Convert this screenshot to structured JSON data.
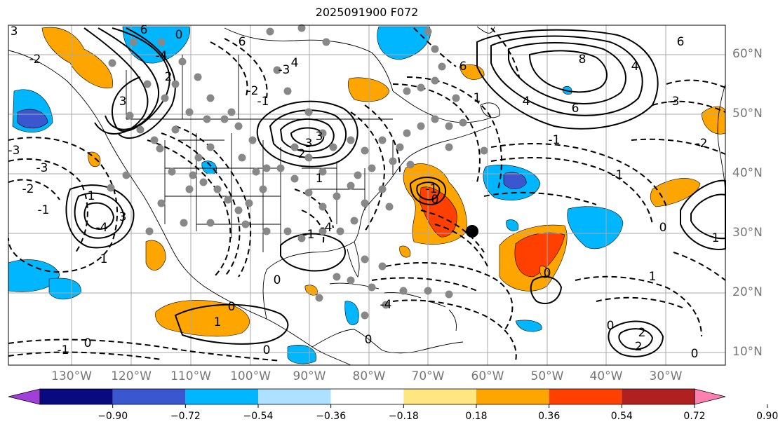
{
  "title": "2025091900 F072",
  "latitude_labels": [
    "60°N",
    "50°N",
    "40°N",
    "30°N",
    "20°N",
    "10°N"
  ],
  "longitude_labels": [
    "130°W",
    "120°W",
    "110°W",
    "100°W",
    "90°W",
    "80°W",
    "70°W",
    "60°W",
    "50°W",
    "40°W",
    "30°W"
  ],
  "colorbar": {
    "tick_labels": [
      "−0.90",
      "−0.72",
      "−0.54",
      "−0.36",
      "−0.18",
      "0.18",
      "0.36",
      "0.54",
      "0.72",
      "0.90"
    ],
    "colors": [
      "#a040d8",
      "#0a0a80",
      "#3a57d0",
      "#00b6ff",
      "#aee0ff",
      "#ffffff",
      "#ffe680",
      "#ffa500",
      "#ff4000",
      "#b02020",
      "#ff80b0"
    ]
  },
  "contour_labels": [
    "0",
    "-1",
    "-2",
    "-3",
    "-4",
    "1",
    "2",
    "3",
    "4",
    "6",
    "8"
  ],
  "fill_colors": {
    "cyan": "#00b6ff",
    "blue": "#3a57d0",
    "orange": "#ffa500",
    "red": "#ff4000"
  },
  "station_marker_color": "#888888",
  "highlight_marker_color": "#000000"
}
